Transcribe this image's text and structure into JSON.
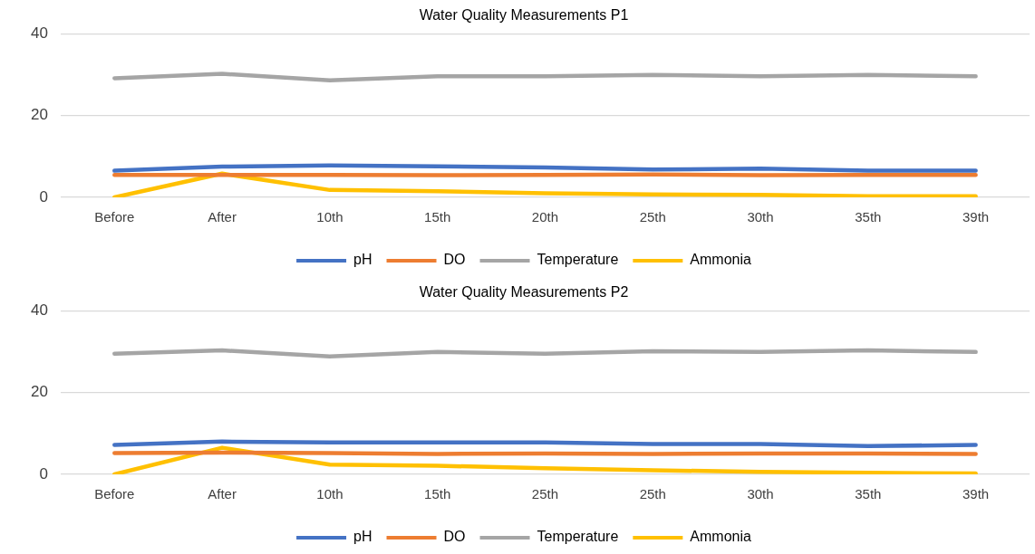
{
  "chart_data": [
    {
      "type": "line",
      "title": "Water Quality Measurements P1",
      "categories": [
        "Before",
        "After",
        "10th",
        "15th",
        "20th",
        "25th",
        "30th",
        "35th",
        "39th"
      ],
      "ylim": [
        0,
        40
      ],
      "yticks": [
        0,
        20,
        40
      ],
      "grid": "y",
      "legend": "bottom",
      "marker": "none",
      "series": [
        {
          "name": "pH",
          "color": "#4472c4",
          "values": [
            6.5,
            7.5,
            7.8,
            7.6,
            7.3,
            6.8,
            7.0,
            6.5,
            6.5
          ]
        },
        {
          "name": "DO",
          "color": "#ed7d31",
          "values": [
            5.5,
            5.5,
            5.5,
            5.4,
            5.5,
            5.6,
            5.4,
            5.5,
            5.5
          ]
        },
        {
          "name": "Temperature",
          "color": "#a5a5a5",
          "values": [
            29.1,
            30.2,
            28.6,
            29.6,
            29.6,
            29.9,
            29.6,
            29.9,
            29.6
          ]
        },
        {
          "name": "Ammonia",
          "color": "#ffc000",
          "values": [
            0,
            5.8,
            1.8,
            1.5,
            1.0,
            0.7,
            0.6,
            0.3,
            0.3
          ]
        }
      ]
    },
    {
      "type": "line",
      "title": "Water Quality Measurements P2",
      "categories": [
        "Before",
        "After",
        "10th",
        "15th",
        "25th",
        "25th",
        "30th",
        "35th",
        "39th"
      ],
      "ylim": [
        0,
        40
      ],
      "yticks": [
        0,
        20,
        40
      ],
      "grid": "y",
      "legend": "bottom",
      "marker": "none",
      "series": [
        {
          "name": "pH",
          "color": "#4472c4",
          "values": [
            7.2,
            8.0,
            7.8,
            7.8,
            7.8,
            7.4,
            7.4,
            6.9,
            7.2
          ]
        },
        {
          "name": "DO",
          "color": "#ed7d31",
          "values": [
            5.2,
            5.3,
            5.2,
            5.0,
            5.1,
            5.0,
            5.1,
            5.1,
            5.0
          ]
        },
        {
          "name": "Temperature",
          "color": "#a5a5a5",
          "values": [
            29.5,
            30.3,
            28.8,
            29.9,
            29.5,
            30.1,
            29.9,
            30.3,
            29.9
          ]
        },
        {
          "name": "Ammonia",
          "color": "#ffc000",
          "values": [
            0,
            6.5,
            2.4,
            2.1,
            1.5,
            1.0,
            0.6,
            0.4,
            0.2
          ]
        }
      ]
    }
  ]
}
